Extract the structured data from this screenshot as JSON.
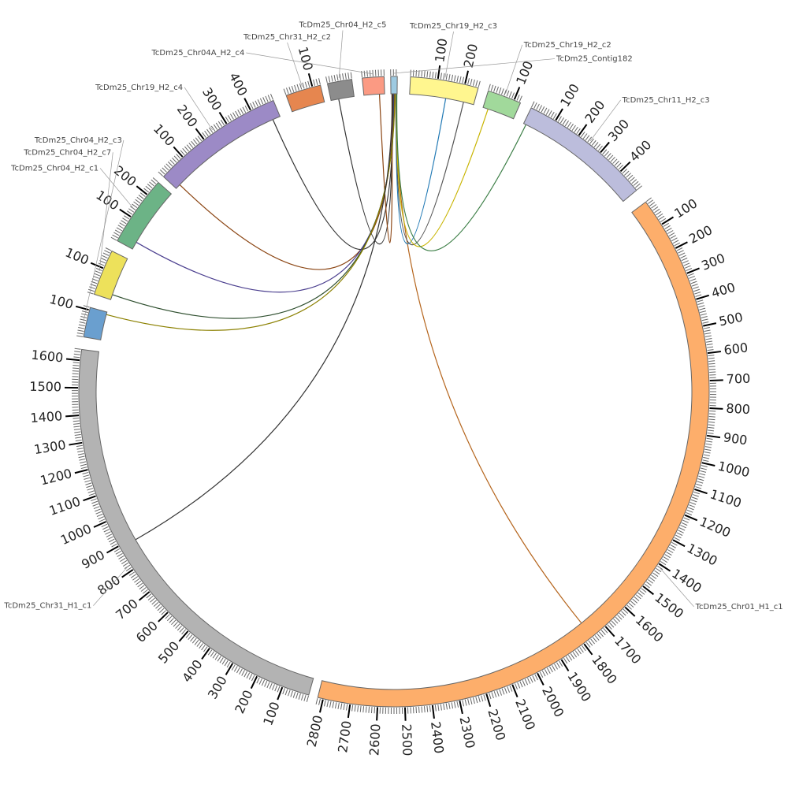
{
  "chart_data": {
    "type": "circos",
    "title": "",
    "unit_per_major_tick": 100,
    "segments": [
      {
        "name": "TcDm25_Contig182",
        "length": 24,
        "color": "#9ecae1"
      },
      {
        "name": "TcDm25_Chr19_H2_c3",
        "length": 250,
        "color": "#fff68f"
      },
      {
        "name": "TcDm25_Chr19_H2_c2",
        "length": 125,
        "color": "#a1d99b"
      },
      {
        "name": "TcDm25_Chr11_H2_c3",
        "length": 490,
        "color": "#bcbddc"
      },
      {
        "name": "TcDm25_Chr01_H1_c1",
        "length": 2820,
        "color": "#fdae6b"
      },
      {
        "name": "TcDm25_Chr31_H1_c1",
        "length": 1640,
        "color": "#b3b3b3"
      },
      {
        "name": "TcDm25_Chr04_H2_c3",
        "length": 110,
        "color": "#6a9fcf"
      },
      {
        "name": "TcDm25_Chr04_H2_c7",
        "length": 170,
        "color": "#ede15b"
      },
      {
        "name": "TcDm25_Chr04_H2_c1",
        "length": 260,
        "color": "#6cb386"
      },
      {
        "name": "TcDm25_Chr19_H2_c4",
        "length": 490,
        "color": "#9c8ac6"
      },
      {
        "name": "TcDm25_Chr31_H2_c2",
        "length": 130,
        "color": "#e6864f"
      },
      {
        "name": "TcDm25_Chr04_H2_c5",
        "length": 90,
        "color": "#8c8c8c"
      },
      {
        "name": "TcDm25_Chr04A_H2_c4",
        "length": 80,
        "color": "#fb9a83"
      }
    ],
    "links": [
      {
        "source": "TcDm25_Contig182",
        "source_pos": 8,
        "target": "TcDm25_Chr19_H2_c4",
        "target_pos": 20,
        "color": "#8b4513"
      },
      {
        "source": "TcDm25_Contig182",
        "source_pos": 10,
        "target": "TcDm25_Chr19_H2_c4",
        "target_pos": 460,
        "color": "#333333"
      },
      {
        "source": "TcDm25_Contig182",
        "source_pos": 6,
        "target": "TcDm25_Chr04_H2_c5",
        "target_pos": 30,
        "color": "#333333"
      },
      {
        "source": "TcDm25_Contig182",
        "source_pos": 4,
        "target": "TcDm25_Chr04A_H2_c4",
        "target_pos": 60,
        "color": "#8b4513"
      },
      {
        "source": "TcDm25_Contig182",
        "source_pos": 12,
        "target": "TcDm25_Chr04_H2_c1",
        "target_pos": 30,
        "color": "#4b3f8f"
      },
      {
        "source": "TcDm25_Contig182",
        "source_pos": 14,
        "target": "TcDm25_Chr04_H2_c7",
        "target_pos": 20,
        "color": "#2f4f2f"
      },
      {
        "source": "TcDm25_Contig182",
        "source_pos": 15,
        "target": "TcDm25_Chr04_H2_c3",
        "target_pos": 100,
        "color": "#8b8000"
      },
      {
        "source": "TcDm25_Contig182",
        "source_pos": 5,
        "target": "TcDm25_Chr31_H1_c1",
        "target_pos": 890,
        "color": "#333333"
      },
      {
        "source": "TcDm25_Contig182",
        "source_pos": 18,
        "target": "TcDm25_Chr01_H1_c1",
        "target_pos": 1760,
        "color": "#b5651d"
      },
      {
        "source": "TcDm25_Contig182",
        "source_pos": 20,
        "target": "TcDm25_Chr19_H2_c3",
        "target_pos": 140,
        "color": "#1f78b4"
      },
      {
        "source": "TcDm25_Contig182",
        "source_pos": 21,
        "target": "TcDm25_Chr19_H2_c3",
        "target_pos": 210,
        "color": "#555555"
      },
      {
        "source": "TcDm25_Contig182",
        "source_pos": 22,
        "target": "TcDm25_Chr19_H2_c2",
        "target_pos": 20,
        "color": "#c8b400"
      },
      {
        "source": "TcDm25_Contig182",
        "source_pos": 23,
        "target": "TcDm25_Chr11_H2_c3",
        "target_pos": 10,
        "color": "#3a7d44"
      }
    ]
  }
}
